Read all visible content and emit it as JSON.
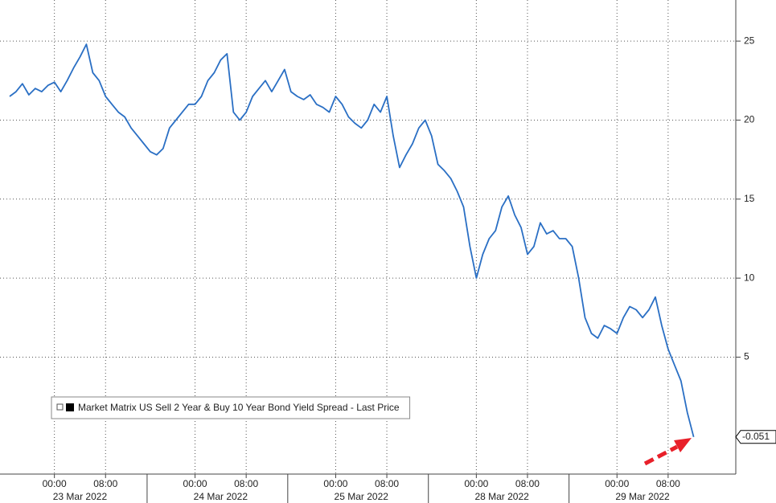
{
  "chart_data": {
    "type": "line",
    "categories": [
      null,
      null,
      null,
      null,
      null,
      null,
      null,
      "00:00",
      null,
      null,
      null,
      null,
      null,
      null,
      null,
      "08:00",
      null,
      null,
      null,
      null,
      null,
      null,
      null,
      null,
      null,
      null,
      null,
      null,
      null,
      "00:00",
      null,
      null,
      null,
      null,
      null,
      null,
      null,
      "08:00",
      null,
      null,
      null,
      null,
      null,
      null,
      null,
      null,
      null,
      null,
      null,
      null,
      null,
      "00:00",
      null,
      null,
      null,
      null,
      null,
      null,
      null,
      "08:00",
      null,
      null,
      null,
      null,
      null,
      null,
      null,
      null,
      null,
      null,
      null,
      null,
      null,
      "00:00",
      null,
      null,
      null,
      null,
      null,
      null,
      null,
      "08:00",
      null,
      null,
      null,
      null,
      null,
      null,
      null,
      null,
      null,
      null,
      null,
      null,
      null,
      "00:00",
      null,
      null,
      null,
      null,
      null,
      null,
      null,
      "08:00",
      null,
      null,
      null,
      null,
      null,
      null
    ],
    "day_labels": [
      "23 Mar 2022",
      "24 Mar 2022",
      "25 Mar 2022",
      "28 Mar 2022",
      "29 Mar 2022"
    ],
    "series": [
      {
        "name": "Market Matrix US Sell 2 Year & Buy 10 Year Bond Yield Spread - Last Price",
        "color": "#2a6fc4",
        "values": [
          21.5,
          21.8,
          22.3,
          21.6,
          22,
          21.8,
          22.2,
          22.4,
          21.8,
          22.5,
          23.3,
          24,
          24.8,
          23,
          22.5,
          21.5,
          21,
          20.5,
          20.2,
          19.5,
          19,
          18.5,
          18,
          17.8,
          18.2,
          19.5,
          20,
          20.5,
          21,
          21,
          21.5,
          22.5,
          23,
          23.8,
          24.2,
          20.5,
          20,
          20.5,
          21.5,
          22,
          22.5,
          21.8,
          22.5,
          23.2,
          21.8,
          21.5,
          21.3,
          21.6,
          21,
          20.8,
          20.5,
          21.5,
          21,
          20.2,
          19.8,
          19.5,
          20,
          21,
          20.5,
          21.5,
          19,
          17,
          17.8,
          18.5,
          19.5,
          20,
          19,
          17.2,
          16.8,
          16.3,
          15.5,
          14.5,
          12,
          10,
          11.5,
          12.5,
          13,
          14.5,
          15.2,
          14,
          13.2,
          11.5,
          12,
          13.5,
          12.8,
          13,
          12.5,
          12.5,
          12,
          10,
          7.5,
          6.5,
          6.2,
          7,
          6.8,
          6.5,
          7.5,
          8.2,
          8,
          7.5,
          8,
          8.8,
          7,
          5.5,
          4.5,
          3.5,
          1.5,
          -0.051,
          null,
          null
        ]
      }
    ],
    "ylim": [
      -2.4,
      27.6
    ],
    "yticks": [
      5,
      10,
      15,
      20,
      25
    ],
    "grid": true
  }
}
